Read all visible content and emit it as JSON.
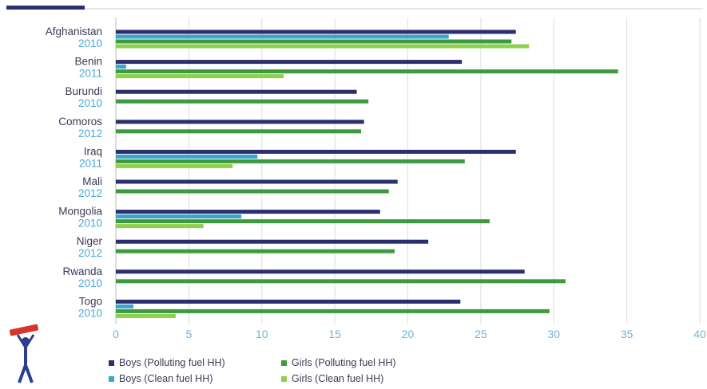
{
  "chart_data": {
    "type": "bar",
    "orientation": "horizontal",
    "categories": [
      {
        "country": "Afghanistan",
        "year": "2010"
      },
      {
        "country": "Benin",
        "year": "2011"
      },
      {
        "country": "Burundi",
        "year": "2010"
      },
      {
        "country": "Comoros",
        "year": "2012"
      },
      {
        "country": "Iraq",
        "year": "2011"
      },
      {
        "country": "Mali",
        "year": "2012"
      },
      {
        "country": "Mongolia",
        "year": "2010"
      },
      {
        "country": "Niger",
        "year": "2012"
      },
      {
        "country": "Rwanda",
        "year": "2010"
      },
      {
        "country": "Togo",
        "year": "2010"
      }
    ],
    "series": [
      {
        "name": "Boys (Polluting fuel HH)",
        "color": "#2b2f6e",
        "values": [
          27.4,
          23.7,
          16.5,
          17.0,
          27.4,
          19.3,
          18.1,
          21.4,
          28.0,
          23.6
        ]
      },
      {
        "name": "Boys (Clean fuel HH)",
        "color": "#3aa6c8",
        "values": [
          22.8,
          0.7,
          null,
          null,
          9.7,
          null,
          8.6,
          null,
          null,
          1.2
        ]
      },
      {
        "name": "Girls (Polluting fuel HH)",
        "color": "#3d9a3f",
        "values": [
          27.1,
          34.4,
          17.3,
          16.8,
          23.9,
          18.7,
          25.6,
          19.1,
          30.8,
          29.7
        ]
      },
      {
        "name": "Girls (Clean fuel HH)",
        "color": "#8ed04c",
        "values": [
          28.3,
          11.5,
          null,
          null,
          8.0,
          null,
          6.0,
          null,
          null,
          4.1
        ]
      }
    ],
    "xlim": [
      0,
      40
    ],
    "xticks": [
      "0",
      "5",
      "10",
      "15",
      "20",
      "25",
      "30",
      "35",
      "40"
    ],
    "grid": true,
    "legend_position": "bottom",
    "colors": {
      "country_label": "#3a3a5a",
      "year_label": "#4aa8d8",
      "tick_label": "#6fb3dc",
      "grid": "#dddddd",
      "header_accent": "#2b2f6e"
    }
  }
}
